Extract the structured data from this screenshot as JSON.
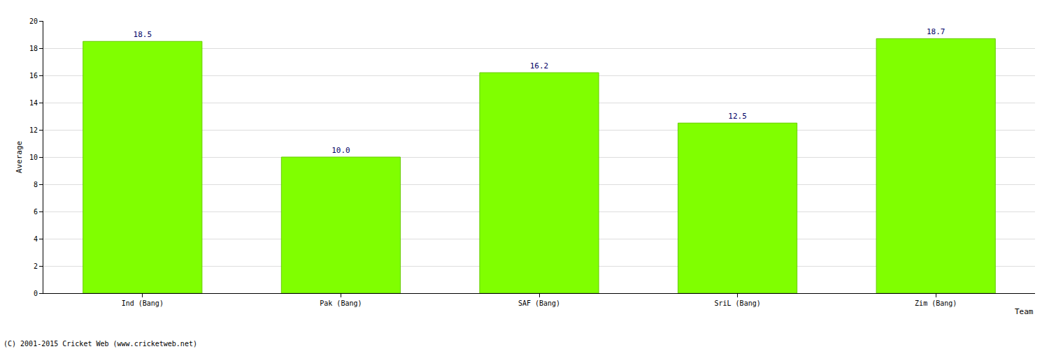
{
  "chart_data": {
    "type": "bar",
    "categories": [
      "Ind (Bang)",
      "Pak (Bang)",
      "SAF (Bang)",
      "SriL (Bang)",
      "Zim (Bang)"
    ],
    "values": [
      18.5,
      10.0,
      16.2,
      12.5,
      18.7
    ],
    "value_labels": [
      "18.5",
      "10.0",
      "16.2",
      "12.5",
      "18.7"
    ],
    "color": "#80ff00",
    "x_label": "Team",
    "y_label": "Average",
    "ylim": [
      0,
      20
    ],
    "yticks": [
      0,
      2,
      4,
      6,
      8,
      10,
      12,
      14,
      16,
      18,
      20
    ],
    "grid": true,
    "data_labels": true,
    "annotations": [
      "(C) 2001-2015 Cricket Web (www.cricketweb.net)"
    ]
  }
}
